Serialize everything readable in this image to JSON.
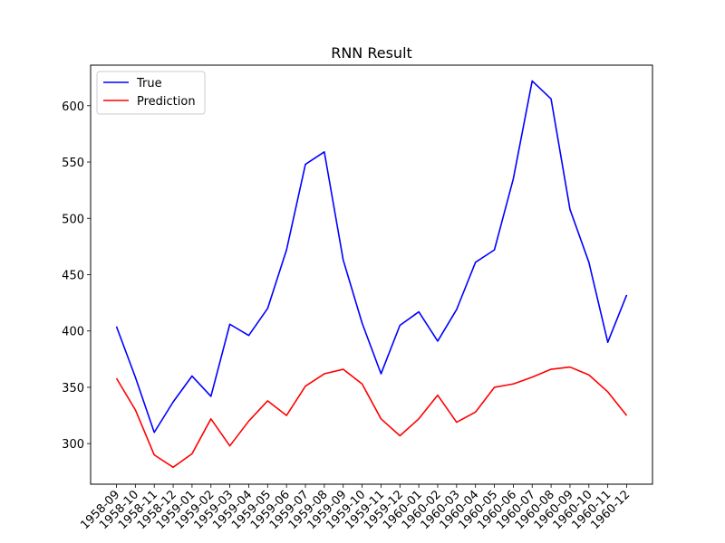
{
  "chart_data": {
    "type": "line",
    "title": "RNN Result",
    "xlabel": "",
    "ylabel": "",
    "x": [
      "1958-09",
      "1958-10",
      "1958-11",
      "1958-12",
      "1959-01",
      "1959-02",
      "1959-03",
      "1959-04",
      "1959-05",
      "1959-06",
      "1959-07",
      "1959-08",
      "1959-09",
      "1959-10",
      "1959-11",
      "1959-12",
      "1960-01",
      "1960-02",
      "1960-03",
      "1960-04",
      "1960-05",
      "1960-06",
      "1960-07",
      "1960-08",
      "1960-09",
      "1960-10",
      "1960-11",
      "1960-12"
    ],
    "series": [
      {
        "name": "True",
        "color": "#0000ff",
        "values": [
          404,
          359,
          310,
          337,
          360,
          342,
          406,
          396,
          420,
          472,
          548,
          559,
          463,
          407,
          362,
          405,
          417,
          391,
          419,
          461,
          472,
          535,
          622,
          606,
          508,
          461,
          390,
          432
        ]
      },
      {
        "name": "Prediction",
        "color": "#ff0000",
        "values": [
          358,
          330,
          290,
          279,
          291,
          322,
          298,
          320,
          338,
          325,
          351,
          362,
          366,
          353,
          322,
          307,
          322,
          343,
          319,
          328,
          350,
          353,
          359,
          366,
          368,
          361,
          346,
          325
        ]
      }
    ],
    "yticks": [
      300,
      350,
      400,
      450,
      500,
      550,
      600
    ],
    "ylim": [
      264,
      636
    ],
    "legend": "top-left",
    "grid": false
  }
}
